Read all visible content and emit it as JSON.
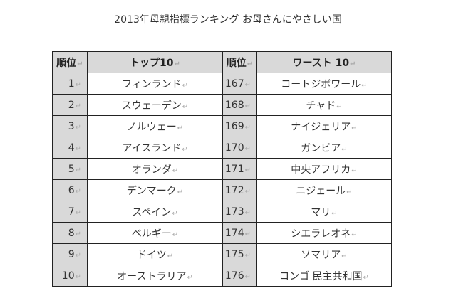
{
  "title": "2013年母親指標ランキング お母さんにやさしい国",
  "table": {
    "headers": {
      "rank_left": "順位",
      "top10": "トップ10",
      "rank_right": "順位",
      "worst10": "ワースト 10"
    },
    "return_mark": "↵",
    "rows": [
      {
        "top_rank": "1",
        "top_country": "フィンランド",
        "worst_rank": "167",
        "worst_country": "コートジボワール"
      },
      {
        "top_rank": "2",
        "top_country": "スウェーデン",
        "worst_rank": "168",
        "worst_country": "チャド"
      },
      {
        "top_rank": "3",
        "top_country": "ノルウェー",
        "worst_rank": "169",
        "worst_country": "ナイジェリア"
      },
      {
        "top_rank": "4",
        "top_country": "アイスランド",
        "worst_rank": "170",
        "worst_country": "ガンビア"
      },
      {
        "top_rank": "5",
        "top_country": "オランダ",
        "worst_rank": "171",
        "worst_country": "中央アフリカ"
      },
      {
        "top_rank": "6",
        "top_country": "デンマーク",
        "worst_rank": "172",
        "worst_country": "ニジェール"
      },
      {
        "top_rank": "7",
        "top_country": "スペイン",
        "worst_rank": "173",
        "worst_country": "マリ"
      },
      {
        "top_rank": "8",
        "top_country": "ベルギー",
        "worst_rank": "174",
        "worst_country": "シエラレオネ"
      },
      {
        "top_rank": "9",
        "top_country": "ドイツ",
        "worst_rank": "175",
        "worst_country": "ソマリア"
      },
      {
        "top_rank": "10",
        "top_country": "オーストラリア",
        "worst_rank": "176",
        "worst_country": "コンゴ 民主共和国"
      }
    ]
  }
}
